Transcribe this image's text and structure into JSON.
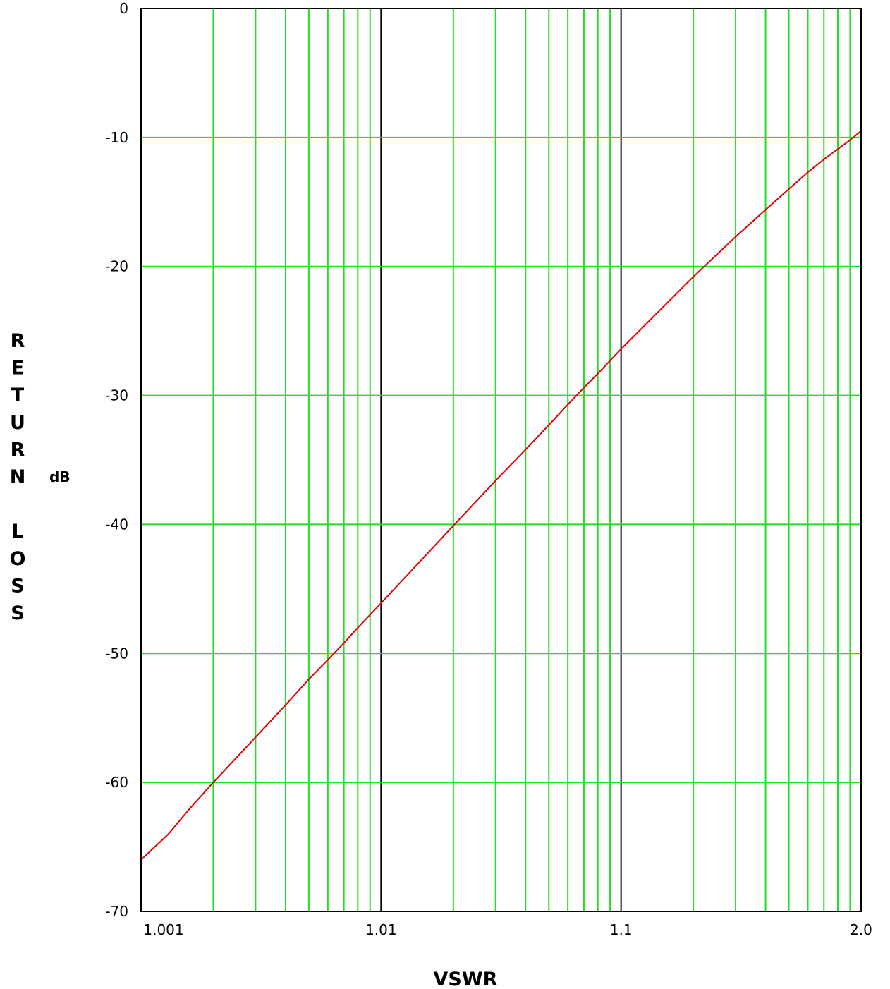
{
  "chart_data": {
    "type": "line",
    "title": "",
    "xlabel": "VSWR",
    "ylabel": "RETURN LOSS",
    "ylabel_unit": "dB",
    "x_scale": "log of (VSWR - 1)",
    "xlim": [
      1.001,
      2.0
    ],
    "ylim": [
      -70,
      0
    ],
    "x_tick_labels": [
      "1.001",
      "1.01",
      "1.1",
      "2.0"
    ],
    "y_ticks": [
      0,
      -10,
      -20,
      -30,
      -40,
      -50,
      -60,
      -70
    ],
    "y_tick_labels": [
      "0",
      "-10",
      "-20",
      "-30",
      "-40",
      "-50",
      "-60",
      "-70"
    ],
    "grid": true,
    "colors": {
      "grid_minor": "#22dd22",
      "grid_major": "#000000",
      "series": "#e00000",
      "frame": "#000000"
    },
    "series": [
      {
        "x": [
          1.001,
          1.0013,
          1.0016,
          1.002,
          1.003,
          1.004,
          1.005,
          1.006,
          1.007,
          1.008,
          1.009,
          1.01,
          1.02,
          1.03,
          1.04,
          1.05,
          1.06,
          1.07,
          1.08,
          1.09,
          1.1,
          1.2,
          1.3,
          1.4,
          1.5,
          1.6,
          1.7,
          1.8,
          1.9,
          2.0
        ],
        "y": [
          -66.0,
          -64.0,
          -62.0,
          -60.0,
          -56.5,
          -54.0,
          -52.0,
          -50.5,
          -49.2,
          -48.0,
          -47.0,
          -46.1,
          -40.1,
          -36.6,
          -34.2,
          -32.3,
          -30.7,
          -29.4,
          -28.3,
          -27.3,
          -26.4,
          -20.8,
          -17.7,
          -15.6,
          -14.0,
          -12.7,
          -11.7,
          -10.9,
          -10.2,
          -9.5
        ]
      }
    ]
  }
}
